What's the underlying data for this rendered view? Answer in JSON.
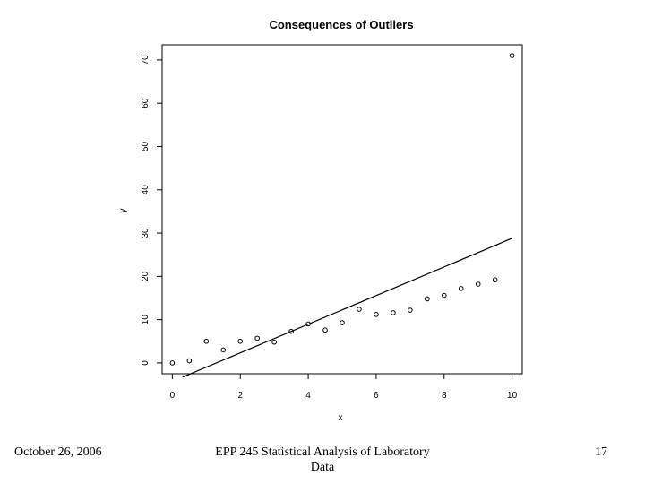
{
  "slide": {
    "footer_left": "October 26, 2006",
    "footer_center": "EPP 245 Statistical Analysis of Laboratory Data",
    "footer_right": "17"
  },
  "chart_data": {
    "type": "scatter",
    "title": "Consequences of Outliers",
    "xlabel": "x",
    "ylabel": "y",
    "xlim": [
      -0.3,
      10.3
    ],
    "ylim": [
      -2.5,
      73.5
    ],
    "x_ticks": [
      0,
      2,
      4,
      6,
      8,
      10
    ],
    "x_tick_labels": [
      "0",
      "2",
      "4",
      "6",
      "8",
      "10"
    ],
    "y_ticks": [
      0,
      10,
      20,
      30,
      40,
      50,
      60,
      70
    ],
    "y_tick_labels": [
      "0",
      "10",
      "20",
      "30",
      "40",
      "50",
      "60",
      "70"
    ],
    "grid": false,
    "series": [
      {
        "kind": "points",
        "x": [
          0,
          0.5,
          1,
          1.5,
          2,
          2.5,
          3,
          3.5,
          4,
          4.5,
          5,
          5.5,
          6,
          6.5,
          7,
          7.5,
          8,
          8.5,
          9,
          9.5,
          10
        ],
        "y": [
          0,
          0.5,
          5,
          3,
          5,
          5.7,
          4.8,
          7.3,
          9,
          7.6,
          9.3,
          12.4,
          11.2,
          11.6,
          12.2,
          14.8,
          15.6,
          17.2,
          18.2,
          19.2,
          71
        ]
      },
      {
        "kind": "fit_line",
        "x": [
          0.3,
          10
        ],
        "y": [
          -3.3,
          28.8
        ]
      }
    ]
  }
}
